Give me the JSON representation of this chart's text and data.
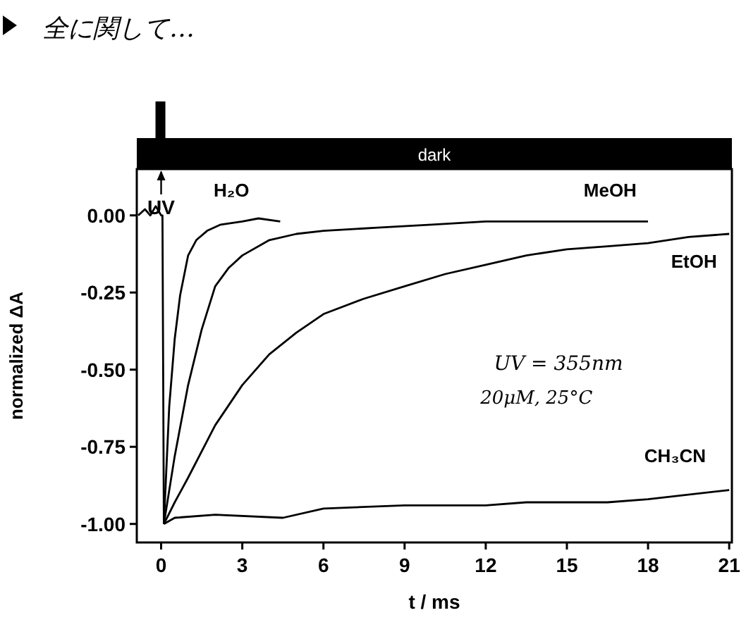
{
  "chart_data": {
    "type": "line",
    "xlabel": "t / ms",
    "ylabel": "normalized ΔA",
    "xlim": [
      -0.9,
      21.1
    ],
    "ylim": [
      -1.06,
      0.15
    ],
    "xticks": [
      0,
      3,
      6,
      9,
      12,
      15,
      18,
      21
    ],
    "yticks": [
      {
        "value": 0,
        "label": "0.00"
      },
      {
        "value": -0.25,
        "label": "-0.25"
      },
      {
        "value": -0.5,
        "label": "-0.50"
      },
      {
        "value": -0.75,
        "label": "-0.75"
      },
      {
        "value": -1,
        "label": "-1.00"
      }
    ],
    "line_style": "solid",
    "series": [
      {
        "color": "#000000",
        "x": [
          -0.85,
          -0.6,
          -0.4,
          -0.2,
          0,
          0.05,
          0.1
        ],
        "values": [
          0.0,
          0.02,
          0.0,
          0.03,
          0.0,
          0.0,
          -1.0
        ]
      },
      {
        "name": "H₂O",
        "color": "#000000",
        "x": [
          0.1,
          0.3,
          0.5,
          0.7,
          1.0,
          1.3,
          1.7,
          2.2,
          3.0,
          3.6,
          4.4
        ],
        "values": [
          -1.0,
          -0.62,
          -0.4,
          -0.26,
          -0.13,
          -0.08,
          -0.05,
          -0.03,
          -0.02,
          -0.01,
          -0.02
        ]
      },
      {
        "name": "MeOH",
        "color": "#000000",
        "x": [
          0.1,
          0.5,
          1.0,
          1.5,
          2.0,
          2.5,
          3.0,
          4.0,
          5.0,
          6.0,
          8.0,
          10.0,
          12.0,
          14.0,
          16.0,
          18.0
        ],
        "values": [
          -1.0,
          -0.78,
          -0.55,
          -0.37,
          -0.23,
          -0.17,
          -0.13,
          -0.08,
          -0.06,
          -0.05,
          -0.04,
          -0.03,
          -0.02,
          -0.02,
          -0.02,
          -0.02
        ]
      },
      {
        "name": "EtOH",
        "color": "#000000",
        "x": [
          0.1,
          0.5,
          1.0,
          2.0,
          3.0,
          4.0,
          5.0,
          6.0,
          7.5,
          9.0,
          10.5,
          12.0,
          13.5,
          15.0,
          16.5,
          18.0,
          19.5,
          21.0
        ],
        "values": [
          -1.0,
          -0.93,
          -0.85,
          -0.68,
          -0.55,
          -0.45,
          -0.38,
          -0.32,
          -0.27,
          -0.23,
          -0.19,
          -0.16,
          -0.13,
          -0.11,
          -0.1,
          -0.09,
          -0.07,
          -0.06
        ]
      },
      {
        "name": "CH₃CN",
        "color": "#000000",
        "x": [
          0.1,
          0.5,
          2.0,
          4.5,
          6.0,
          9.0,
          10.5,
          12.0,
          13.5,
          15.0,
          16.5,
          18.0,
          21.0
        ],
        "values": [
          -1.0,
          -0.98,
          -0.97,
          -0.98,
          -0.95,
          -0.94,
          -0.94,
          -0.94,
          -0.93,
          -0.93,
          -0.93,
          -0.92,
          -0.89
        ]
      }
    ],
    "annotations": [
      "dark",
      "UV",
      "UV = 355nm",
      "20μM, 25°C",
      "全に関して…"
    ]
  }
}
